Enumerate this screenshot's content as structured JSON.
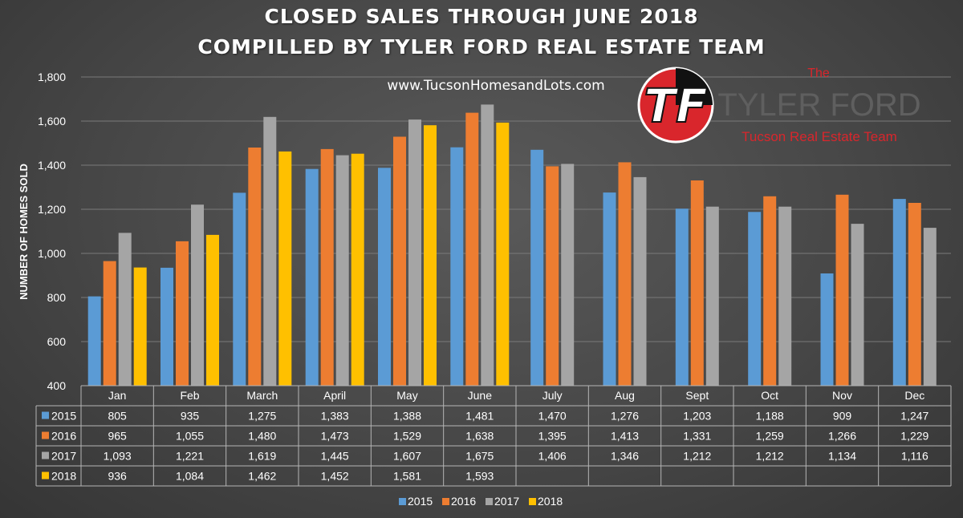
{
  "title_line1": "CLOSED SALES THROUGH JUNE 2018",
  "title_line2": "COMPILLED BY TYLER FORD REAL ESTATE TEAM",
  "website": "www.TucsonHomesandLots.com",
  "logo": {
    "monogram": "TF",
    "the": "The",
    "name": "TYLER FORD",
    "tagline": "Tucson Real Estate Team",
    "colors": {
      "red": "#d9262c",
      "black": "#111111"
    }
  },
  "colors": {
    "2015": "#5b9bd5",
    "2016": "#ed7d31",
    "2017": "#a5a5a5",
    "2018": "#ffc000"
  },
  "chart_data": {
    "type": "bar",
    "ylabel": "NUMBER OF HOMES SOLD",
    "xlabel": "",
    "ylim": [
      400,
      1800
    ],
    "yticks": [
      400,
      600,
      800,
      1000,
      1200,
      1400,
      1600,
      1800
    ],
    "ytick_labels": [
      "400",
      "600",
      "800",
      "1,000",
      "1,200",
      "1,400",
      "1,600",
      "1,800"
    ],
    "grid": true,
    "legend": "bottom",
    "data_table": true,
    "categories": [
      "Jan",
      "Feb",
      "March",
      "April",
      "May",
      "June",
      "July",
      "Aug",
      "Sept",
      "Oct",
      "Nov",
      "Dec"
    ],
    "series": [
      {
        "name": "2015",
        "values": [
          805,
          935,
          1275,
          1383,
          1388,
          1481,
          1470,
          1276,
          1203,
          1188,
          909,
          1247
        ],
        "labels": [
          "805",
          "935",
          "1,275",
          "1,383",
          "1,388",
          "1,481",
          "1,470",
          "1,276",
          "1,203",
          "1,188",
          "909",
          "1,247"
        ]
      },
      {
        "name": "2016",
        "values": [
          965,
          1055,
          1480,
          1473,
          1529,
          1638,
          1395,
          1413,
          1331,
          1259,
          1266,
          1229
        ],
        "labels": [
          "965",
          "1,055",
          "1,480",
          "1,473",
          "1,529",
          "1,638",
          "1,395",
          "1,413",
          "1,331",
          "1,259",
          "1,266",
          "1,229"
        ]
      },
      {
        "name": "2017",
        "values": [
          1093,
          1221,
          1619,
          1445,
          1607,
          1675,
          1406,
          1346,
          1212,
          1212,
          1134,
          1116
        ],
        "labels": [
          "1,093",
          "1,221",
          "1,619",
          "1,445",
          "1,607",
          "1,675",
          "1,406",
          "1,346",
          "1,212",
          "1,212",
          "1,134",
          "1,116"
        ]
      },
      {
        "name": "2018",
        "values": [
          936,
          1084,
          1462,
          1452,
          1581,
          1593,
          null,
          null,
          null,
          null,
          null,
          null
        ],
        "labels": [
          "936",
          "1,084",
          "1,462",
          "1,452",
          "1,581",
          "1,593",
          "",
          "",
          "",
          "",
          "",
          ""
        ]
      }
    ]
  }
}
